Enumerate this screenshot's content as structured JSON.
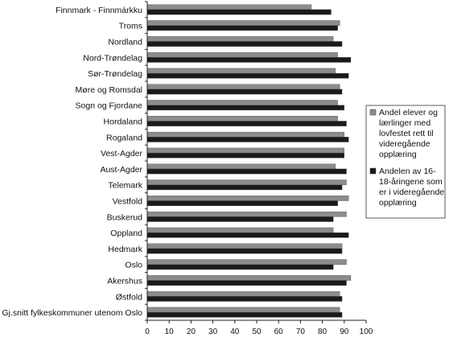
{
  "chart_data": {
    "type": "bar",
    "orientation": "horizontal",
    "categories": [
      "Finnmark - Finnmárkku",
      "Troms",
      "Nordland",
      "Nord-Trøndelag",
      "Sør-Trøndelag",
      "Møre og Romsdal",
      "Sogn og Fjordane",
      "Hordaland",
      "Rogaland",
      "Vest-Agder",
      "Aust-Agder",
      "Telemark",
      "Vestfold",
      "Buskerud",
      "Oppland",
      "Hedmark",
      "Oslo",
      "Akershus",
      "Østfold",
      "Gj.snitt fylkeskommuner utenom Oslo"
    ],
    "series": [
      {
        "name": "Andel elever og lærlinger med lovfestet rett til videregående opplæring",
        "color": "#8c8c8c",
        "values": [
          75,
          88,
          85,
          87,
          86,
          88,
          87,
          87,
          90,
          90,
          86,
          91,
          92,
          91,
          85,
          89,
          91,
          93,
          88,
          88
        ]
      },
      {
        "name": "Andelen av 16-18-åringene som er i videregående opplæring",
        "color": "#1a1a1a",
        "values": [
          84,
          87,
          89,
          93,
          92,
          89,
          90,
          91,
          92,
          90,
          91,
          89,
          87,
          85,
          92,
          89,
          85,
          91,
          89,
          89
        ]
      }
    ],
    "xlim": [
      0,
      100
    ],
    "xticks": [
      "0",
      "10",
      "20",
      "30",
      "40",
      "50",
      "60",
      "70",
      "80",
      "90",
      "100"
    ],
    "legend_position": "right",
    "grid": false,
    "title": "",
    "xlabel": "",
    "ylabel": ""
  }
}
